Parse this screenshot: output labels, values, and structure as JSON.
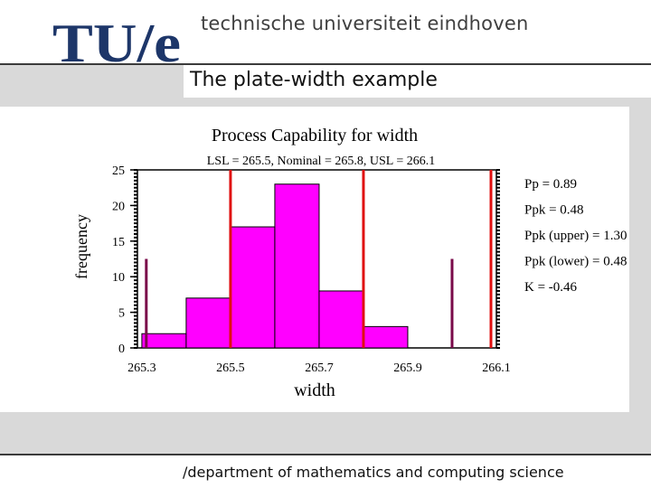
{
  "header": {
    "university_name": "technische universiteit eindhoven",
    "logo_text": "TU/e"
  },
  "slide": {
    "title": "The plate-width example",
    "footer": "/department of mathematics and computing science"
  },
  "chart_data": {
    "type": "bar",
    "title": "Process Capability for width",
    "subtitle": "LSL = 265.5, Nominal = 265.8, USL = 266.1",
    "xlabel": "width",
    "ylabel": "frequency",
    "bins": [
      {
        "from": 265.3,
        "to": 265.4,
        "value": 2
      },
      {
        "from": 265.4,
        "to": 265.5,
        "value": 7
      },
      {
        "from": 265.5,
        "to": 265.6,
        "value": 17
      },
      {
        "from": 265.6,
        "to": 265.7,
        "value": 23
      },
      {
        "from": 265.7,
        "to": 265.8,
        "value": 8
      },
      {
        "from": 265.8,
        "to": 265.9,
        "value": 3
      },
      {
        "from": 265.9,
        "to": 266.0,
        "value": 0
      }
    ],
    "xlim": [
      265.29,
      266.1
    ],
    "ylim": [
      0,
      25
    ],
    "x_ticks": [
      "265.3",
      "265.5",
      "265.7",
      "265.9",
      "266.1"
    ],
    "y_ticks": [
      "0",
      "5",
      "10",
      "15",
      "20",
      "25"
    ],
    "spec_lines": [
      {
        "name": "LSL",
        "value": 265.5
      },
      {
        "name": "Nominal",
        "value": 265.8
      },
      {
        "name": "USL",
        "value": 266.1
      }
    ],
    "natural_limits": [
      265.31,
      266.0
    ],
    "stats": [
      "Pp = 0.89",
      "Ppk = 0.48",
      "Ppk (upper) = 1.30",
      "Ppk (lower) = 0.48",
      "K = -0.46"
    ],
    "colors": {
      "bar_fill": "#ff00ff",
      "spec_line": "#e01010",
      "natural_line": "#7a0a4a"
    }
  }
}
